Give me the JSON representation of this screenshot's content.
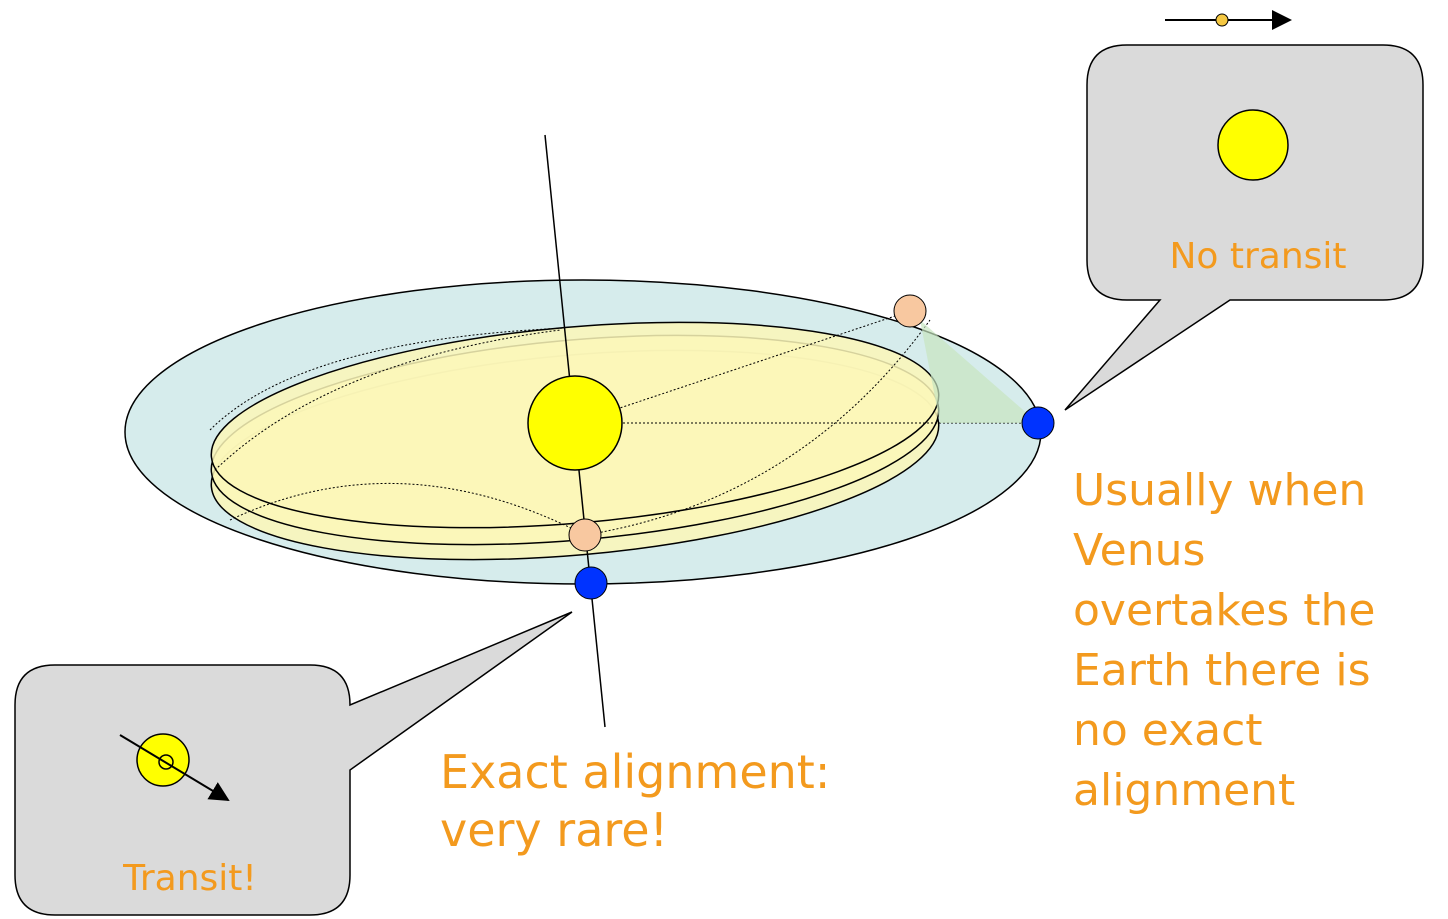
{
  "callouts": [
    {
      "label": "No transit"
    },
    {
      "label": "Transit!"
    }
  ],
  "annotations": [
    {
      "lines": [
        "Exact alignment:",
        "very rare!"
      ]
    },
    {
      "lines": [
        "Usually when",
        "Venus",
        "overtakes the",
        "Earth there is",
        "no exact",
        "alignment"
      ]
    }
  ]
}
